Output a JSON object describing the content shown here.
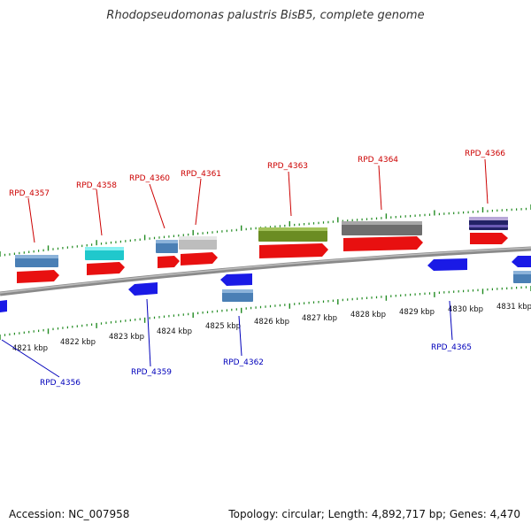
{
  "title": "Rhodopseudomonas palustris BisB5, complete genome",
  "footer": {
    "accession": "Accession: NC_007958",
    "info": "Topology: circular; Length: 4,892,717 bp; Genes: 4,470"
  },
  "colors": {
    "backbone": "#888888",
    "tick": "#228b22",
    "forward_label": "#cc0000",
    "reverse_label": "#0000bb"
  },
  "scale_labels": [
    "4821 kbp",
    "4822 kbp",
    "4823 kbp",
    "4824 kbp",
    "4825 kbp",
    "4826 kbp",
    "4827 kbp",
    "4828 kbp",
    "4829 kbp",
    "4830 kbp",
    "4831 kbp"
  ],
  "forward_genes": [
    {
      "label": "RPD_4357",
      "color": "#e81010"
    },
    {
      "label": "RPD_4358",
      "color": "#e81010"
    },
    {
      "label": "RPD_4360",
      "color": "#e81010"
    },
    {
      "label": "RPD_4361",
      "color": "#e81010"
    },
    {
      "label": "RPD_4363",
      "color": "#e81010"
    },
    {
      "label": "RPD_4364",
      "color": "#e81010"
    },
    {
      "label": "RPD_4366",
      "color": "#e81010"
    }
  ],
  "reverse_genes": [
    {
      "label": "RPD_4356",
      "color": "#1a1ae6"
    },
    {
      "label": "RPD_4359",
      "color": "#1a1ae6"
    },
    {
      "label": "RPD_4362",
      "color": "#1a1ae6"
    },
    {
      "label": "RPD_4365",
      "color": "#1a1ae6"
    }
  ],
  "feature_colors": {
    "steelblue": "#4a7fb5",
    "cyan": "#20c8cc",
    "silver": "#bdbdbd",
    "olive": "#6b8c22",
    "gray": "#6e6e6e",
    "navy": "#222266"
  }
}
